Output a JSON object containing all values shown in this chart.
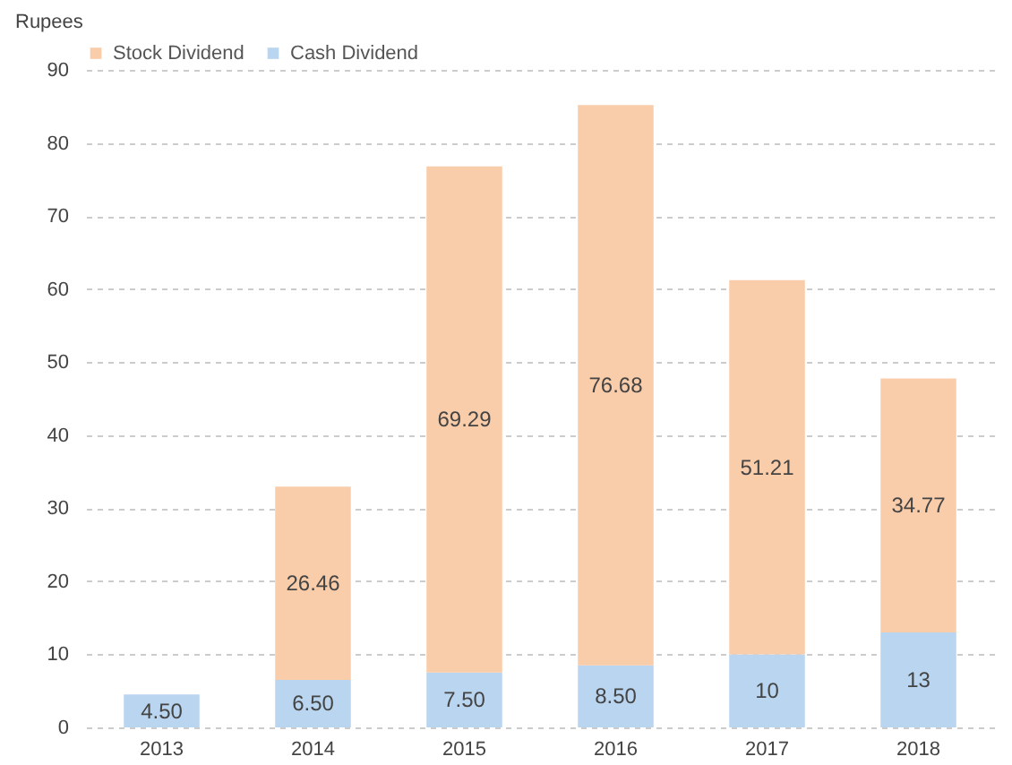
{
  "chart_data": {
    "type": "bar",
    "stacked": true,
    "ylabel": "Rupees",
    "categories": [
      "2013",
      "2014",
      "2015",
      "2016",
      "2017",
      "2018"
    ],
    "series": [
      {
        "name": "Cash Dividend",
        "color": "#b9d5ef",
        "values": [
          4.5,
          6.5,
          7.5,
          8.5,
          10,
          13
        ],
        "value_labels": [
          "4.50",
          "6.50",
          "7.50",
          "8.50",
          "10",
          "13"
        ]
      },
      {
        "name": "Stock Dividend",
        "color": "#f9ccaa",
        "values": [
          null,
          26.46,
          69.29,
          76.68,
          51.21,
          34.77
        ],
        "value_labels": [
          null,
          "26.46",
          "69.29",
          "76.68",
          "51.21",
          "34.77"
        ]
      }
    ],
    "ylim": [
      0,
      90
    ],
    "yticks": [
      0,
      10,
      20,
      30,
      40,
      50,
      60,
      70,
      80,
      90
    ],
    "grid": "y",
    "legend": "top"
  }
}
